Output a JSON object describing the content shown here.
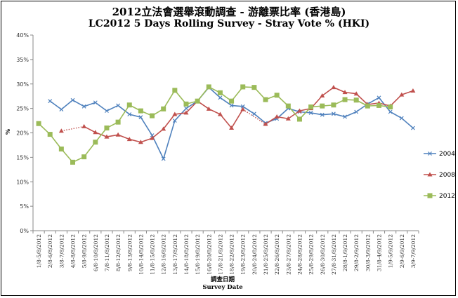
{
  "chart_data": {
    "type": "line",
    "title": "2012立法會選舉滾動調查 - 游離票比率 (香港島)",
    "subtitle": "LC2012 5 Days Rolling Survey - Stray Vote % (HKI)",
    "xlabel": "調查日期",
    "xlabel_en": "Survey Date",
    "ylabel": "%",
    "ylim": [
      0,
      40
    ],
    "yticks": [
      "0%",
      "5%",
      "10%",
      "15%",
      "20%",
      "25%",
      "30%",
      "35%",
      "40%"
    ],
    "grid": false,
    "legend": "right",
    "categories": [
      "1/8-5/8/2012",
      "2/8-6/8/2012",
      "3/8-7/8/2012",
      "4/8-8/8/2012",
      "5/8-9/8/2012",
      "6/8-10/8/2012",
      "7/8-11/8/2012",
      "8/8-12/8/2012",
      "9/8-13/8/2012",
      "10/8-14/8/2012",
      "11/8-15/8/2012",
      "12/8-16/8/2012",
      "13/8-17/8/2012",
      "14/8-18/8/2012",
      "15/8-19/8/2012",
      "16/8-20/8/2012",
      "17/8-21/8/2012",
      "18/8-22/8/2012",
      "19/8-23/8/2012",
      "20/8-24/8/2012",
      "21/8-25/8/2012",
      "22/8-26/8/2012",
      "23/8-27/8/2012",
      "24/8-28/8/2012",
      "25/8-29/8/2012",
      "26/8-30/8/2012",
      "27/8-31/8/2012",
      "28/8-1/9/2012",
      "29/8-2/9/2012",
      "30/8-3/9/2012",
      "31/8-4/9/2012",
      "1/9-5/9/2012",
      "2/9-6/9/2012",
      "3/9-7/9/2012"
    ],
    "series": [
      {
        "name": "2004",
        "color": "#4f81bd",
        "marker": "x",
        "values": [
          null,
          26.5,
          24.8,
          26.7,
          25.4,
          26.2,
          24.5,
          25.6,
          23.8,
          23.2,
          19.5,
          14.7,
          22.5,
          25.0,
          26.5,
          29.3,
          27.2,
          25.6,
          25.4,
          23.9,
          22.0,
          22.9,
          25.0,
          24.3,
          24.1,
          23.7,
          23.9,
          23.3,
          24.3,
          25.9,
          27.2,
          24.3,
          23.0,
          21.0
        ]
      },
      {
        "name": "2008",
        "color": "#c0504d",
        "marker": "triangle",
        "values": [
          null,
          null,
          20.4,
          null,
          21.3,
          20.1,
          19.2,
          19.6,
          18.7,
          18.1,
          18.9,
          20.8,
          23.8,
          24.1,
          26.5,
          24.9,
          23.8,
          21.0,
          24.8,
          null,
          21.8,
          23.3,
          22.9,
          24.5,
          25.0,
          27.6,
          29.3,
          28.3,
          28.0,
          25.8,
          26.1,
          25.5,
          27.8,
          28.6
        ]
      },
      {
        "name": "2012",
        "color": "#9bbb59",
        "marker": "square",
        "values": [
          21.9,
          19.7,
          16.7,
          14.0,
          15.1,
          18.1,
          21.0,
          22.2,
          25.7,
          24.5,
          23.5,
          24.9,
          28.7,
          25.9,
          26.5,
          29.4,
          28.2,
          26.5,
          29.4,
          29.3,
          26.8,
          27.7,
          25.5,
          22.8,
          25.3,
          25.5,
          25.7,
          26.8,
          26.7,
          25.5,
          25.6,
          25.3,
          null,
          null
        ]
      }
    ]
  }
}
